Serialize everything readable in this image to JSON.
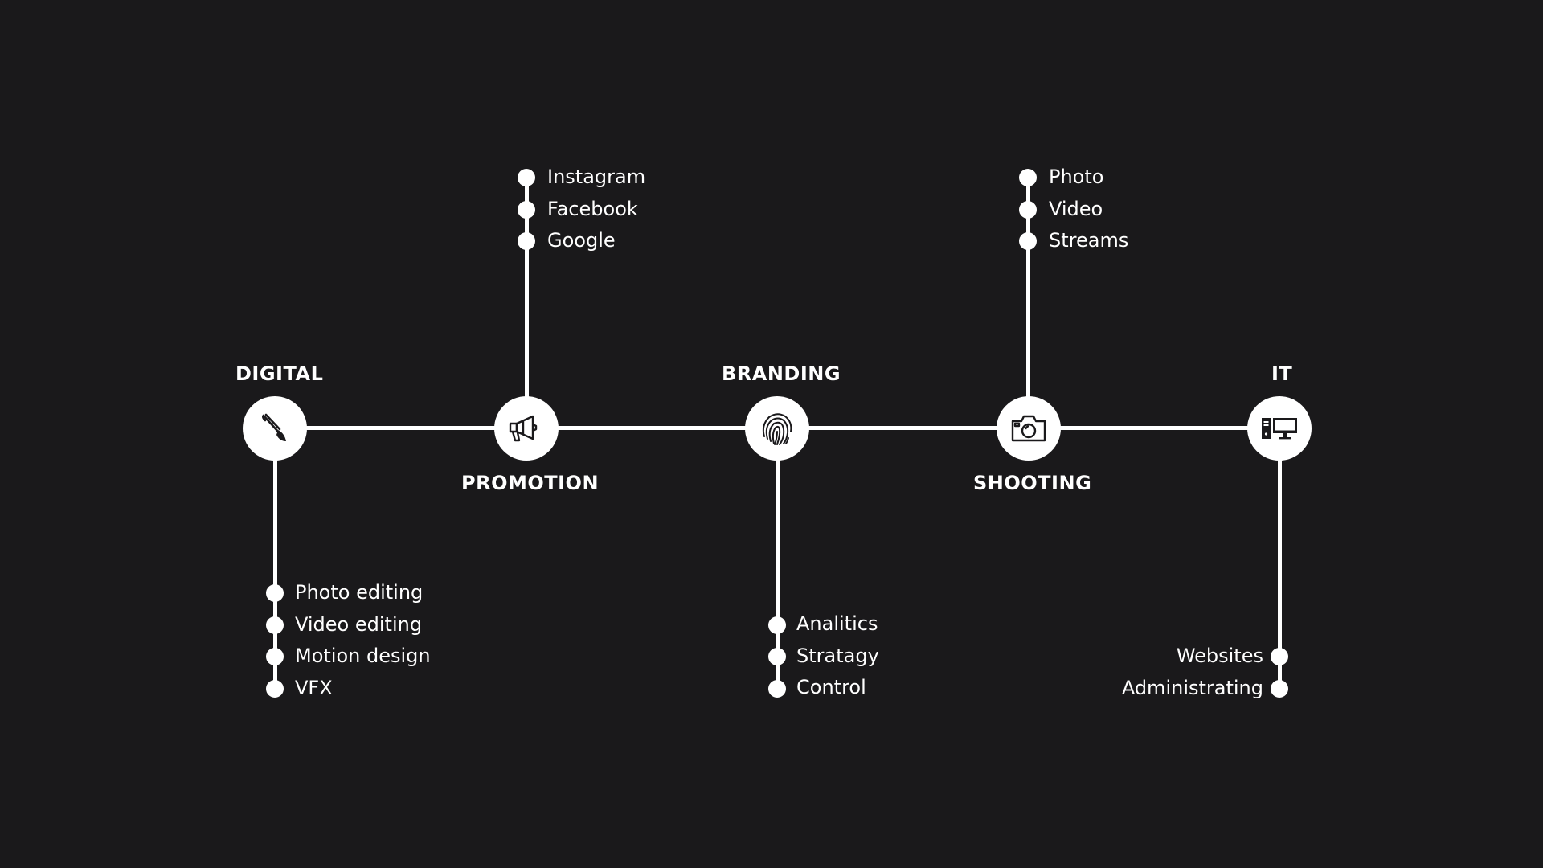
{
  "colors": {
    "background": "#1a191b",
    "foreground": "#ffffff"
  },
  "stages": [
    {
      "title": "DIGITAL",
      "icon": "paintbrush-icon",
      "items": [
        "Photo editing",
        "Video editing",
        "Motion design",
        "VFX"
      ]
    },
    {
      "title": "PROMOTION",
      "icon": "megaphone-icon",
      "items": [
        "Instagram",
        "Facebook",
        "Google"
      ]
    },
    {
      "title": "BRANDING",
      "icon": "fingerprint-icon",
      "items": [
        "Analitics",
        "Stratagy",
        "Control"
      ]
    },
    {
      "title": "SHOOTING",
      "icon": "camera-icon",
      "items": [
        "Photo",
        "Video",
        "Streams"
      ]
    },
    {
      "title": "IT",
      "icon": "computer-icon",
      "items": [
        "Websites",
        "Administrating"
      ]
    }
  ]
}
